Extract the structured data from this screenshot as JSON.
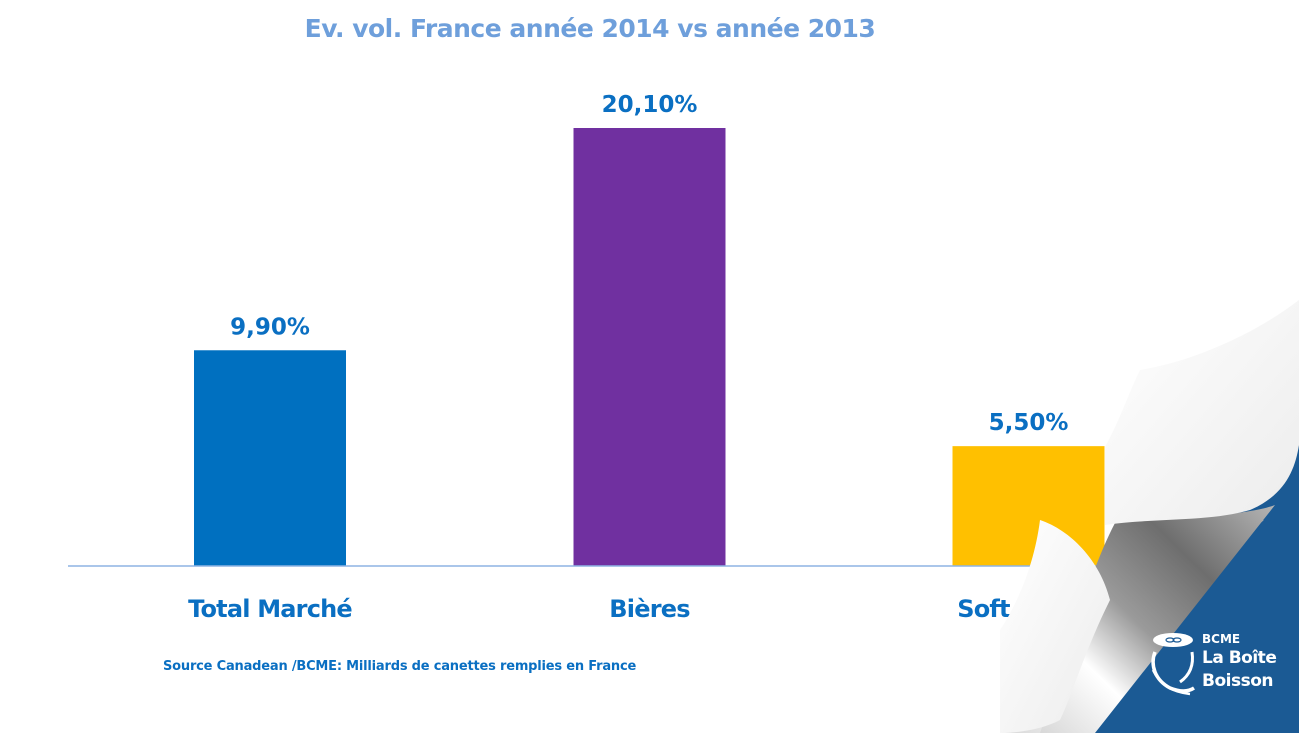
{
  "chart_data": {
    "type": "bar",
    "title": "Ev. vol. France année 2014 vs année 2013",
    "categories": [
      "Total Marché",
      "Bières",
      "Soft Drinks"
    ],
    "values": [
      9.9,
      20.1,
      5.5
    ],
    "value_labels": [
      "9,90%",
      "20,10%",
      "5,50%"
    ],
    "colors": [
      "#0070c0",
      "#7030a0",
      "#ffc000"
    ],
    "xlabel": "",
    "ylabel": "",
    "ylim": [
      0,
      20.1
    ],
    "grid": false,
    "legend": "none",
    "unit": "%"
  },
  "source_note": "Source Canadean /BCME: Milliards de canettes remplies en France",
  "logo": {
    "small": "BCME",
    "line1": "La Boîte",
    "line2": "Boisson"
  },
  "colors": {
    "title": "#6e9fdb",
    "labels": "#0a6fc2",
    "axis": "#8eb4e3",
    "corner_blue": "#1b5a94"
  }
}
